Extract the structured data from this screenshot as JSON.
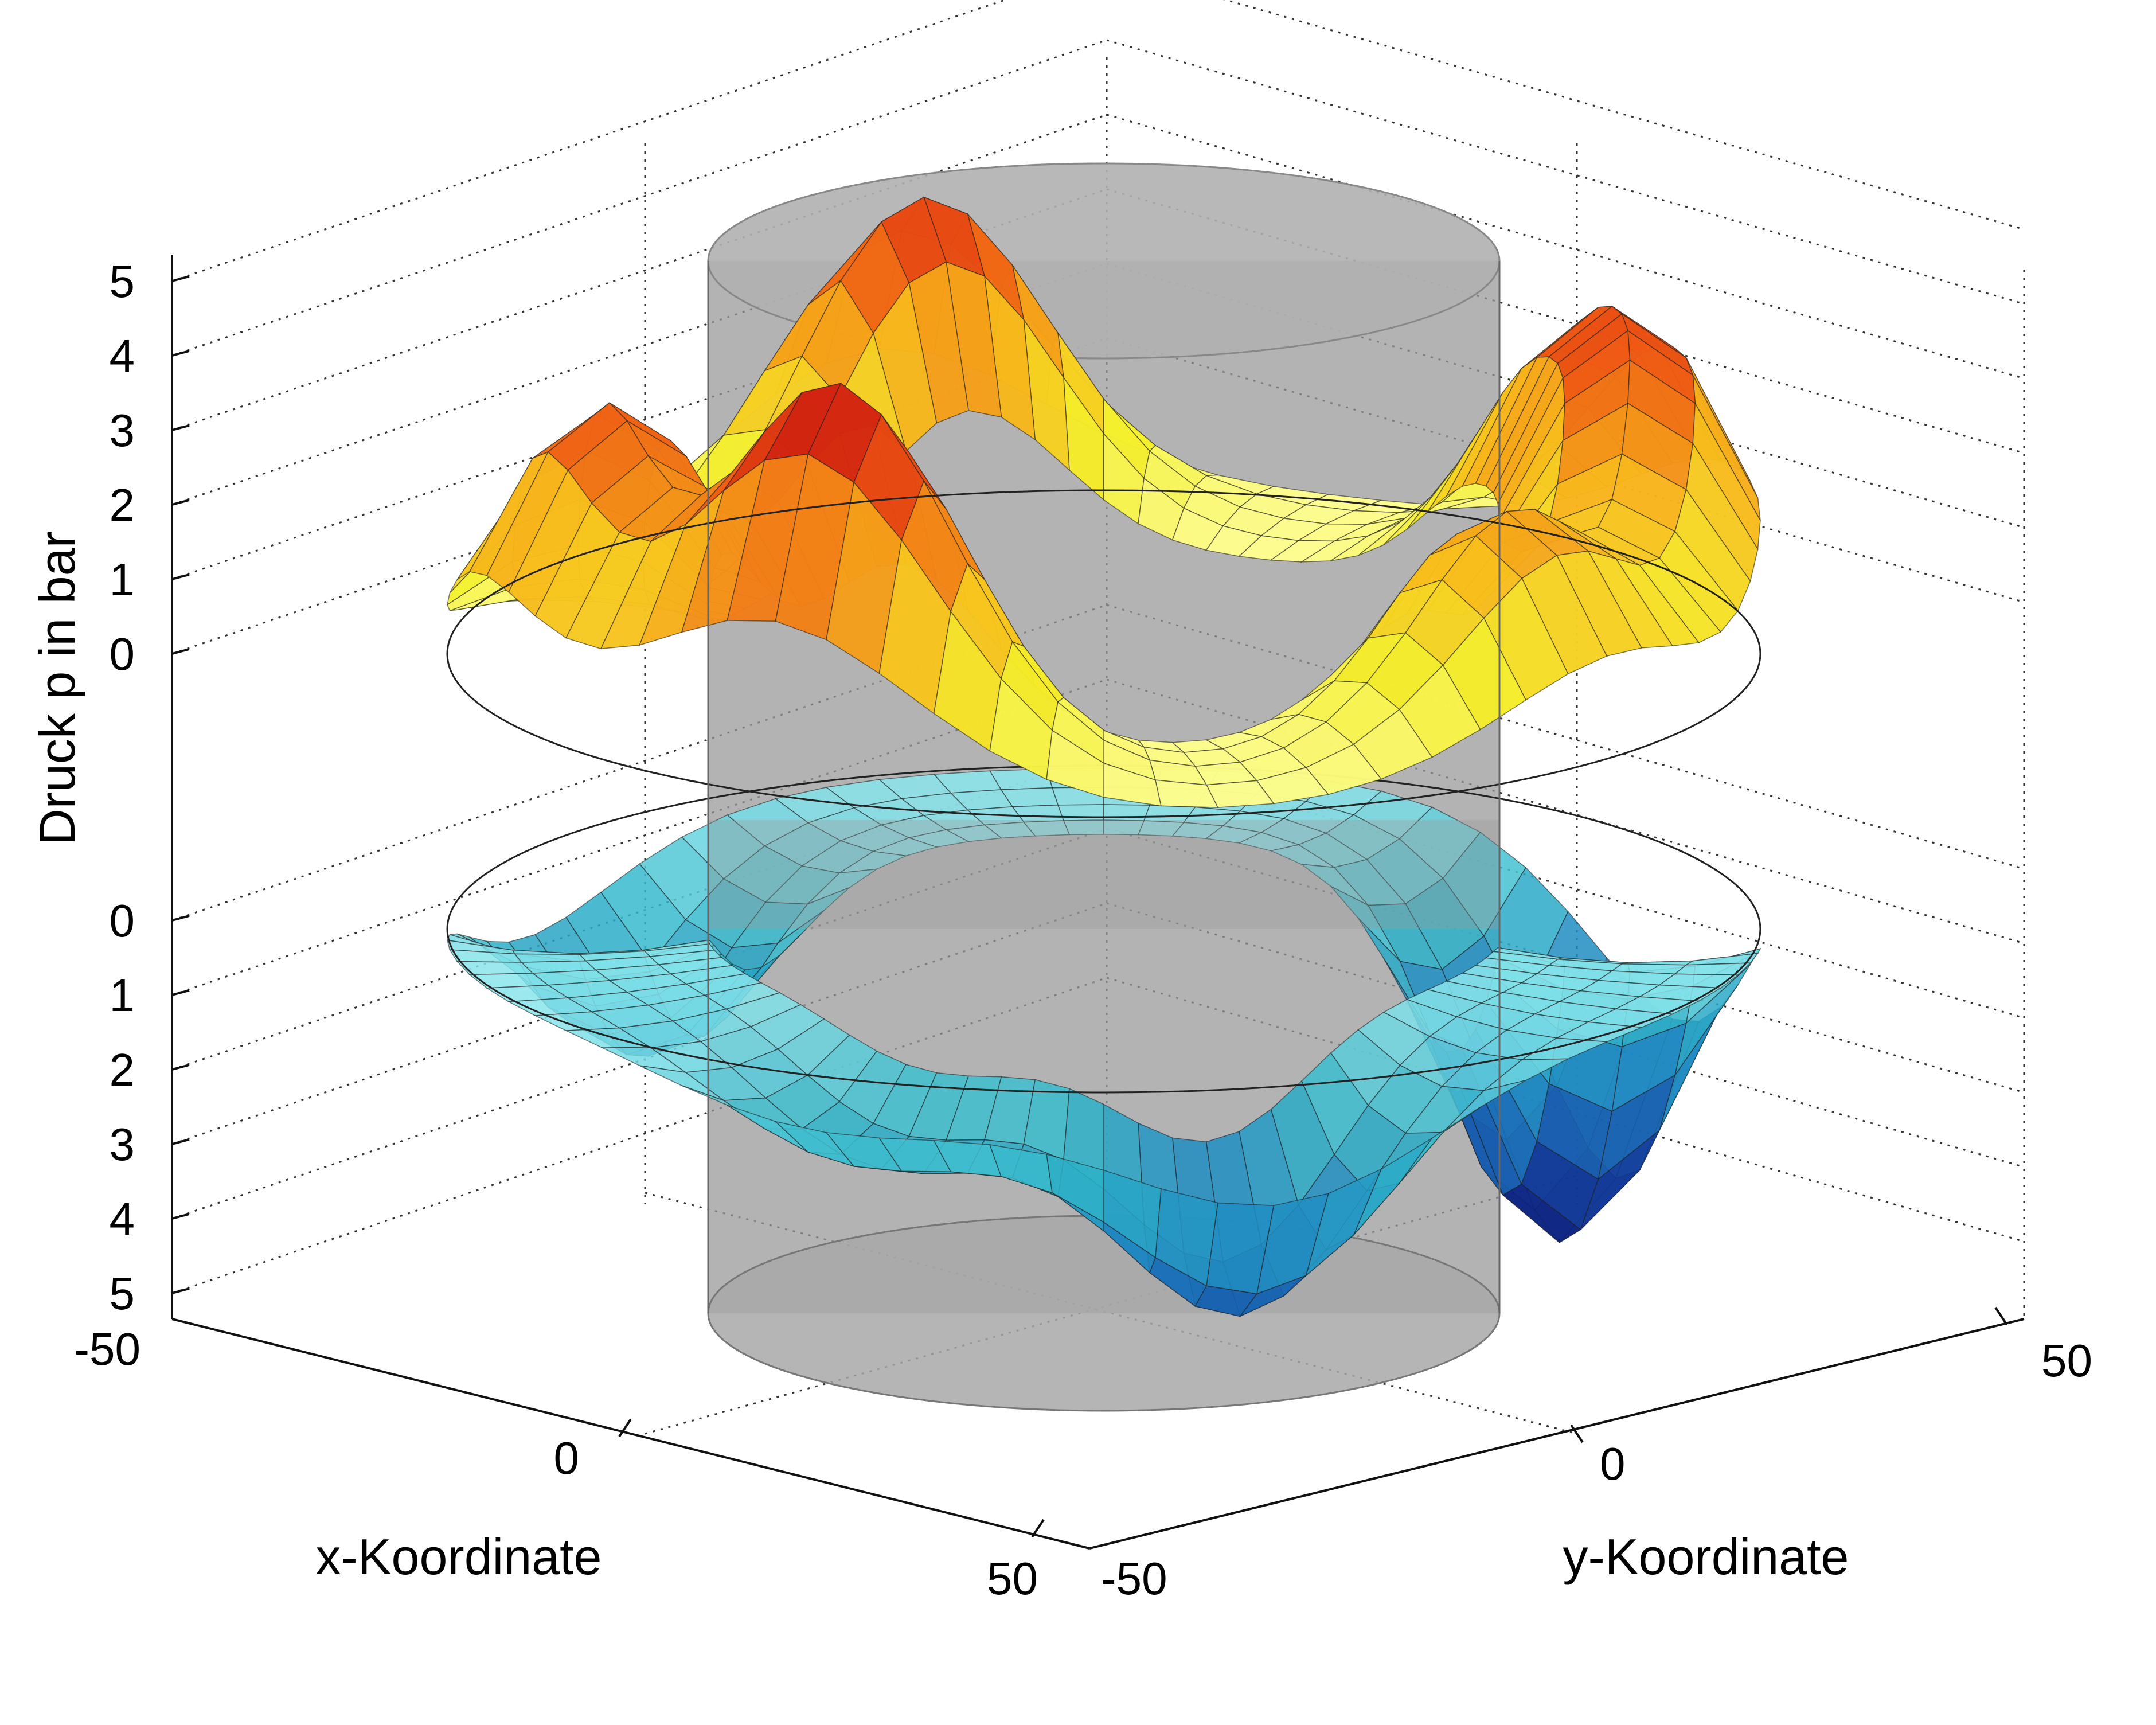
{
  "chart_data": {
    "type": "surface3d",
    "title": "",
    "zlabel": "Druck p in bar",
    "xlabel": "x-Koordinate",
    "ylabel": "y-Koordinate",
    "xlim": [
      -50,
      50
    ],
    "ylim": [
      -50,
      50
    ],
    "x_ticks": [
      "-50",
      "0",
      "50"
    ],
    "y_ticks": [
      "-50",
      "0",
      "50"
    ],
    "z_ticks_upper": [
      "5",
      "4",
      "3",
      "2",
      "1",
      "0"
    ],
    "z_ticks_lower": [
      "0",
      "1",
      "2",
      "3",
      "4",
      "5"
    ],
    "zlim_upper": [
      0,
      5
    ],
    "zlim_lower": [
      0,
      5
    ],
    "grid": true,
    "series": [
      {
        "colormap": "jet (yellow to red)",
        "peaks_deg": [
          120,
          160,
          250,
          40,
          335,
          0
        ],
        "peak_values": [
          5.0,
          3.8,
          4.4,
          2.9,
          3.0,
          3.2
        ]
      },
      {
        "colormap": "jet (cyan to blue)",
        "peaks_deg": [
          330,
          75,
          210,
          115
        ],
        "peak_values": [
          5.0,
          3.4,
          2.5,
          1.5
        ]
      }
    ],
    "cylinder_color": "#9a9a9a",
    "upper_colors": [
      "#ffff99",
      "#f5f02a",
      "#f7b81b",
      "#ee5a14",
      "#c81010"
    ],
    "lower_colors": [
      "#8ee8ee",
      "#2fb6c9",
      "#1c82c0",
      "#1247a6",
      "#0a1070"
    ]
  }
}
